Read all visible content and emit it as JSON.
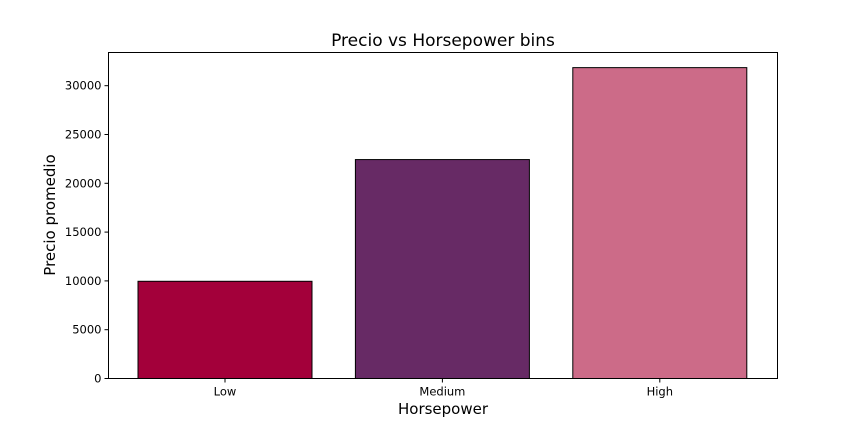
{
  "chart_data": {
    "type": "bar",
    "title": "Precio vs Horsepower bins",
    "xlabel": "Horsepower",
    "ylabel": "Precio promedio",
    "categories": [
      "Low",
      "Medium",
      "High"
    ],
    "values": [
      9960,
      22430,
      31850
    ],
    "colors": [
      "#a3003a",
      "#672a65",
      "#cc6b88"
    ],
    "ylim": [
      0,
      33400
    ],
    "yticks": [
      0,
      5000,
      10000,
      15000,
      20000,
      25000,
      30000
    ],
    "ytick_labels": [
      "0",
      "5000",
      "10000",
      "15000",
      "20000",
      "25000",
      "30000"
    ],
    "grid": false,
    "legend": "none"
  }
}
